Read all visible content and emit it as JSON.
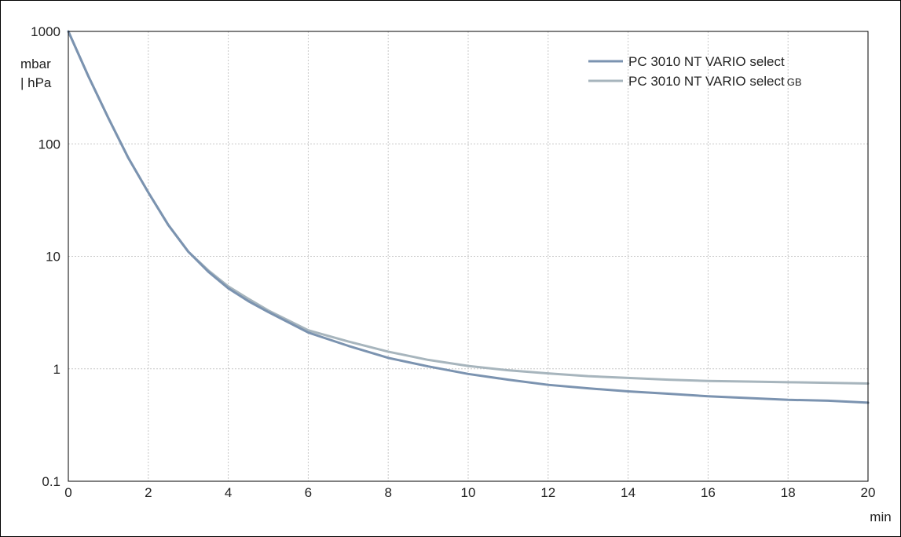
{
  "chart_data": {
    "type": "line",
    "title": "",
    "xlabel": "min",
    "ylabel": "mbar | hPa",
    "ylabel_lines": [
      "mbar",
      "| hPa"
    ],
    "xlim": [
      0,
      20
    ],
    "ylim": [
      0.1,
      1000
    ],
    "yscale": "log",
    "grid": true,
    "legend_position": "top-right",
    "x_ticks": [
      "0",
      "2",
      "4",
      "6",
      "8",
      "10",
      "12",
      "14",
      "16",
      "18",
      "20"
    ],
    "y_ticks": [
      "0.1",
      "1",
      "10",
      "100",
      "1000"
    ],
    "series": [
      {
        "name": "PC 3010 NT VARIO select",
        "name_main": "PC 3010 NT VARIO select",
        "name_sub": "",
        "color": "#7b93b0",
        "x": [
          0,
          0.5,
          1,
          1.5,
          2,
          2.5,
          3,
          3.5,
          4,
          4.5,
          5,
          6,
          7,
          8,
          9,
          10,
          11,
          12,
          13,
          14,
          15,
          16,
          17,
          18,
          19,
          20
        ],
        "y": [
          1000,
          400,
          170,
          75,
          37,
          19,
          11,
          7.3,
          5.2,
          4.0,
          3.2,
          2.1,
          1.6,
          1.25,
          1.05,
          0.9,
          0.8,
          0.72,
          0.67,
          0.63,
          0.6,
          0.57,
          0.55,
          0.53,
          0.52,
          0.5
        ]
      },
      {
        "name": "PC 3010 NT VARIO select GB",
        "name_main": "PC 3010 NT VARIO select",
        "name_sub": "GB",
        "color": "#a7b5bd",
        "x": [
          0,
          0.5,
          1,
          1.5,
          2,
          2.5,
          3,
          3.5,
          4,
          4.5,
          5,
          6,
          7,
          8,
          9,
          10,
          11,
          12,
          13,
          14,
          15,
          16,
          17,
          18,
          19,
          20
        ],
        "y": [
          1000,
          400,
          170,
          75,
          37,
          19,
          11,
          7.5,
          5.4,
          4.2,
          3.3,
          2.2,
          1.75,
          1.42,
          1.2,
          1.06,
          0.97,
          0.91,
          0.86,
          0.83,
          0.8,
          0.78,
          0.77,
          0.76,
          0.75,
          0.74
        ]
      }
    ]
  }
}
